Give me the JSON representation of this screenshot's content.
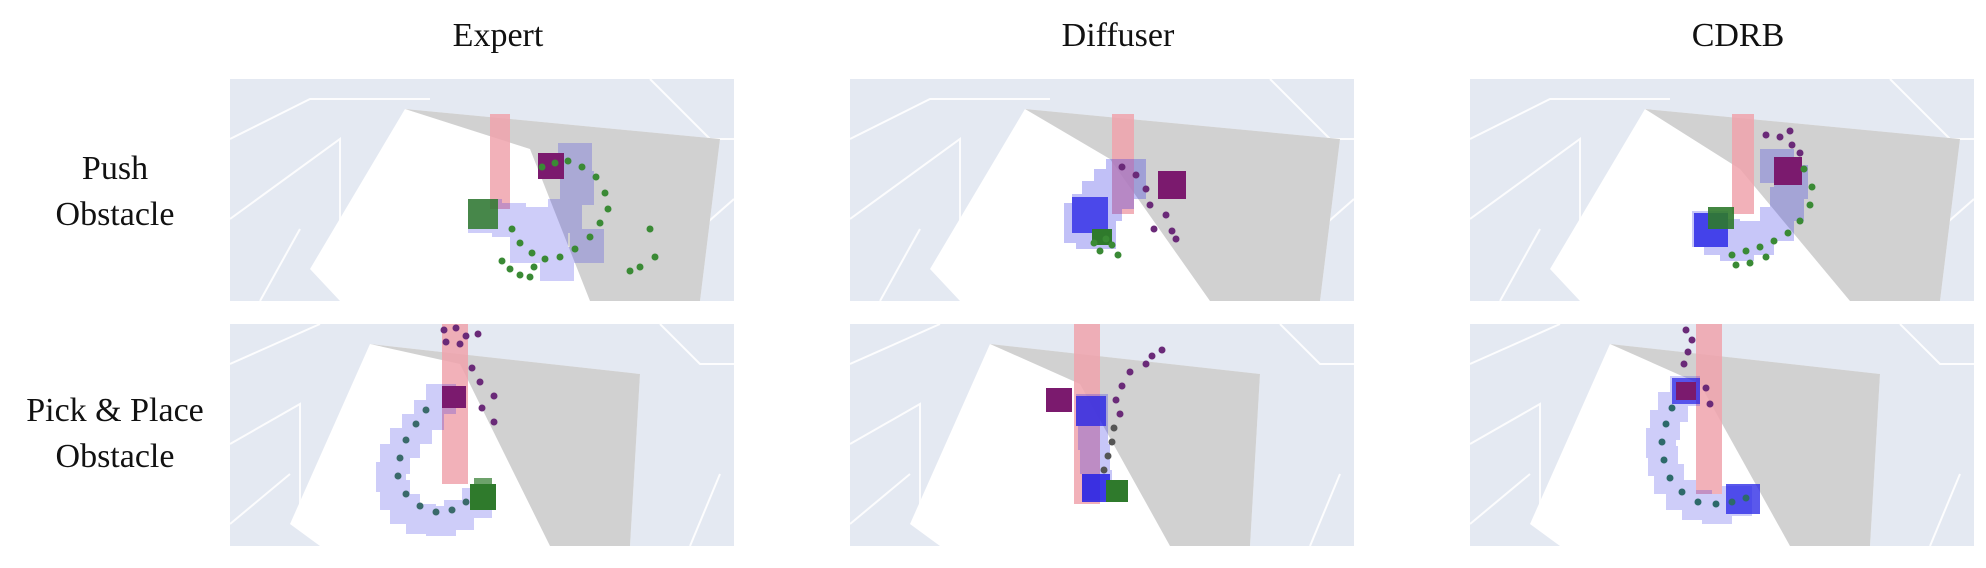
{
  "figure": {
    "column_headers": [
      "Expert",
      "Diffuser",
      "CDRB"
    ],
    "row_labels": [
      [
        "Push",
        "Obstacle"
      ],
      [
        "Pick & Place",
        "Obstacle"
      ]
    ]
  },
  "colors": {
    "background_grid": "#e4e9f2",
    "grid_lines": "#ffffff",
    "table_light": "#ffffff",
    "table_shadow": "#c6c6c6",
    "obstacle": "#f0a3ad",
    "robot_cube": "#2320e6",
    "goal_cube": "#2f7a2c",
    "object_cube": "#7b1a6e",
    "traj_green": "#3a8a35",
    "traj_purple": "#6a2a78"
  }
}
